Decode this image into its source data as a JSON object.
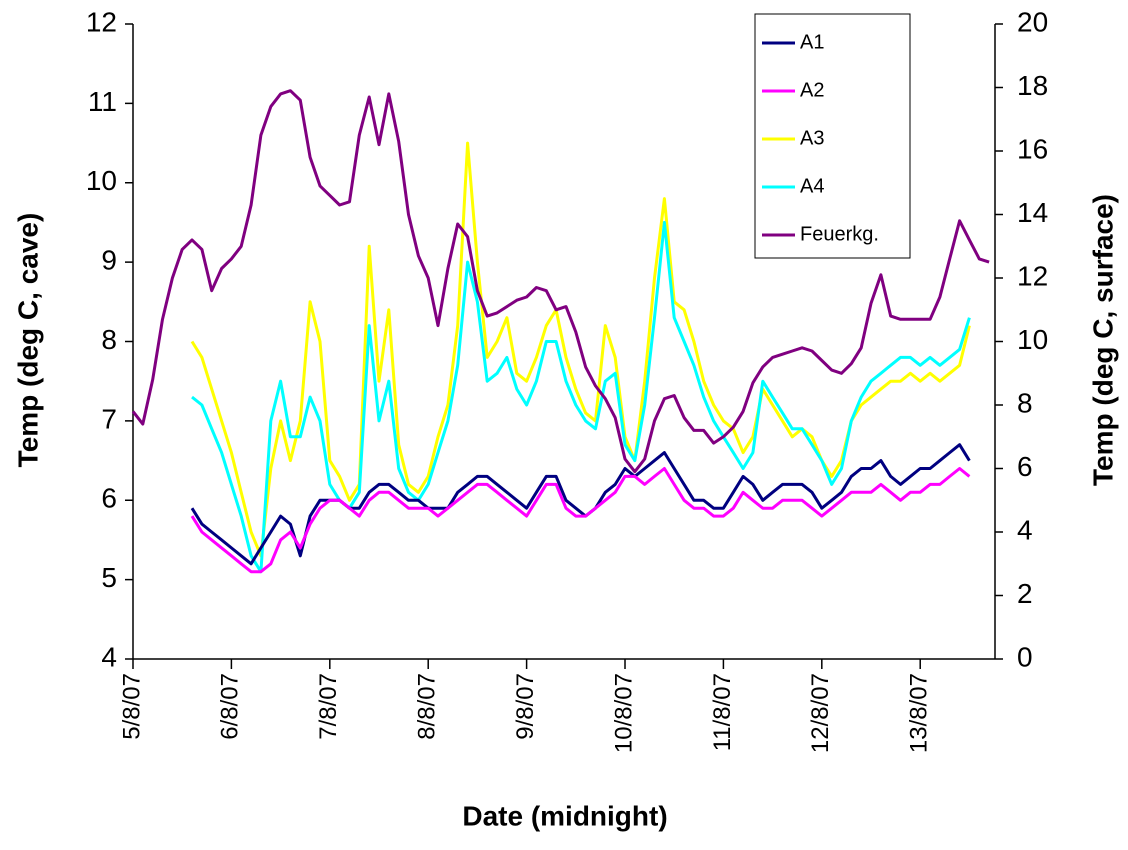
{
  "chart_data": {
    "type": "line",
    "x_label": "Date (midnight)",
    "y_label": "Temp (deg C, cave)",
    "y2_label": "Temp (deg C, surface)",
    "x": [
      0,
      0.1,
      0.2,
      0.3,
      0.4,
      0.5,
      0.6,
      0.7,
      0.8,
      0.9,
      1.0,
      1.1,
      1.2,
      1.3,
      1.4,
      1.5,
      1.6,
      1.7,
      1.8,
      1.9,
      2.0,
      2.1,
      2.2,
      2.3,
      2.4,
      2.5,
      2.6,
      2.7,
      2.8,
      2.9,
      3.0,
      3.1,
      3.2,
      3.3,
      3.4,
      3.5,
      3.6,
      3.7,
      3.8,
      3.9,
      4.0,
      4.1,
      4.2,
      4.3,
      4.4,
      4.5,
      4.6,
      4.7,
      4.8,
      4.9,
      5.0,
      5.1,
      5.2,
      5.3,
      5.4,
      5.5,
      5.6,
      5.7,
      5.8,
      5.9,
      6.0,
      6.1,
      6.2,
      6.3,
      6.4,
      6.5,
      6.6,
      6.7,
      6.8,
      6.9,
      7.0,
      7.1,
      7.2,
      7.3,
      7.4,
      7.5,
      7.6,
      7.7,
      7.8,
      7.9,
      8.0,
      8.1,
      8.2,
      8.3,
      8.4,
      8.5,
      8.6,
      8.7
    ],
    "xlim": [
      0,
      8.76
    ],
    "xticks": [
      {
        "value": 0,
        "label": "5/8/07"
      },
      {
        "value": 1,
        "label": "6/8/07"
      },
      {
        "value": 2,
        "label": "7/8/07"
      },
      {
        "value": 3,
        "label": "8/8/07"
      },
      {
        "value": 4,
        "label": "9/8/07"
      },
      {
        "value": 5,
        "label": "10/8/07"
      },
      {
        "value": 6,
        "label": "11/8/07"
      },
      {
        "value": 7,
        "label": "12/8/07"
      },
      {
        "value": 8,
        "label": "13/8/07"
      }
    ],
    "ylim": [
      4,
      12
    ],
    "yticks": [
      4,
      5,
      6,
      7,
      8,
      9,
      10,
      11,
      12
    ],
    "y2lim": [
      0,
      20
    ],
    "y2ticks": [
      0,
      2,
      4,
      6,
      8,
      10,
      12,
      14,
      16,
      18,
      20
    ],
    "legend": "top-right",
    "series": [
      {
        "name": "A1",
        "color": "#000080",
        "values": [
          null,
          null,
          null,
          null,
          null,
          null,
          5.9,
          5.7,
          5.6,
          5.5,
          5.4,
          5.3,
          5.2,
          5.4,
          5.6,
          5.8,
          5.7,
          5.3,
          5.8,
          6.0,
          6.0,
          6.0,
          5.9,
          5.9,
          6.1,
          6.2,
          6.2,
          6.1,
          6.0,
          6.0,
          5.9,
          5.9,
          5.9,
          6.1,
          6.2,
          6.3,
          6.3,
          6.2,
          6.1,
          6.0,
          5.9,
          6.1,
          6.3,
          6.3,
          6.0,
          5.9,
          5.8,
          5.9,
          6.1,
          6.2,
          6.4,
          6.3,
          6.4,
          6.5,
          6.6,
          6.4,
          6.2,
          6.0,
          6.0,
          5.9,
          5.9,
          6.1,
          6.3,
          6.2,
          6.0,
          6.1,
          6.2,
          6.2,
          6.2,
          6.1,
          5.9,
          6.0,
          6.1,
          6.3,
          6.4,
          6.4,
          6.5,
          6.3,
          6.2,
          6.3,
          6.4,
          6.4,
          6.5,
          6.6,
          6.7,
          6.5,
          null,
          null
        ]
      },
      {
        "name": "A2",
        "color": "#ff00ff",
        "values": [
          null,
          null,
          null,
          null,
          null,
          null,
          5.8,
          5.6,
          5.5,
          5.4,
          5.3,
          5.2,
          5.1,
          5.1,
          5.2,
          5.5,
          5.6,
          5.4,
          5.7,
          5.9,
          6.0,
          6.0,
          5.9,
          5.8,
          6.0,
          6.1,
          6.1,
          6.0,
          5.9,
          5.9,
          5.9,
          5.8,
          5.9,
          6.0,
          6.1,
          6.2,
          6.2,
          6.1,
          6.0,
          5.9,
          5.8,
          6.0,
          6.2,
          6.2,
          5.9,
          5.8,
          5.8,
          5.9,
          6.0,
          6.1,
          6.3,
          6.3,
          6.2,
          6.3,
          6.4,
          6.2,
          6.0,
          5.9,
          5.9,
          5.8,
          5.8,
          5.9,
          6.1,
          6.0,
          5.9,
          5.9,
          6.0,
          6.0,
          6.0,
          5.9,
          5.8,
          5.9,
          6.0,
          6.1,
          6.1,
          6.1,
          6.2,
          6.1,
          6.0,
          6.1,
          6.1,
          6.2,
          6.2,
          6.3,
          6.4,
          6.3,
          null,
          null
        ]
      },
      {
        "name": "A3",
        "color": "#ffff00",
        "values": [
          null,
          null,
          null,
          null,
          null,
          null,
          8.0,
          7.8,
          7.4,
          7.0,
          6.6,
          6.1,
          5.6,
          5.3,
          6.4,
          7.0,
          6.5,
          7.0,
          8.5,
          8.0,
          6.5,
          6.3,
          6.0,
          6.2,
          9.2,
          7.5,
          8.4,
          6.7,
          6.2,
          6.1,
          6.3,
          6.8,
          7.2,
          8.2,
          10.5,
          9.0,
          7.8,
          8.0,
          8.3,
          7.6,
          7.5,
          7.8,
          8.2,
          8.4,
          7.8,
          7.4,
          7.1,
          7.0,
          8.2,
          7.8,
          6.8,
          6.5,
          7.5,
          8.8,
          9.8,
          8.5,
          8.4,
          8.0,
          7.5,
          7.2,
          7.0,
          6.9,
          6.6,
          6.8,
          7.4,
          7.2,
          7.0,
          6.8,
          6.9,
          6.8,
          6.5,
          6.3,
          6.5,
          7.0,
          7.2,
          7.3,
          7.4,
          7.5,
          7.5,
          7.6,
          7.5,
          7.6,
          7.5,
          7.6,
          7.7,
          8.2,
          null,
          null
        ]
      },
      {
        "name": "A4",
        "color": "#00ffff",
        "values": [
          null,
          null,
          null,
          null,
          null,
          null,
          7.3,
          7.2,
          6.9,
          6.6,
          6.2,
          5.8,
          5.3,
          5.1,
          7.0,
          7.5,
          6.8,
          6.8,
          7.3,
          7.0,
          6.2,
          6.0,
          5.9,
          6.1,
          8.2,
          7.0,
          7.5,
          6.4,
          6.1,
          6.0,
          6.2,
          6.6,
          7.0,
          7.7,
          9.0,
          8.5,
          7.5,
          7.6,
          7.8,
          7.4,
          7.2,
          7.5,
          8.0,
          8.0,
          7.5,
          7.2,
          7.0,
          6.9,
          7.5,
          7.6,
          6.7,
          6.5,
          7.2,
          8.3,
          9.5,
          8.3,
          8.0,
          7.7,
          7.3,
          7.0,
          6.8,
          6.6,
          6.4,
          6.6,
          7.5,
          7.3,
          7.1,
          6.9,
          6.9,
          6.7,
          6.5,
          6.2,
          6.4,
          7.0,
          7.3,
          7.5,
          7.6,
          7.7,
          7.8,
          7.8,
          7.7,
          7.8,
          7.7,
          7.8,
          7.9,
          8.3,
          null,
          null
        ]
      },
      {
        "name": "Feuerkg.",
        "color": "#800080",
        "axis": "y2",
        "values": [
          7.8,
          7.4,
          8.8,
          10.7,
          12.0,
          12.9,
          13.2,
          12.9,
          11.6,
          12.3,
          12.6,
          13.0,
          14.3,
          16.5,
          17.4,
          17.8,
          17.9,
          17.6,
          15.8,
          14.9,
          14.6,
          14.3,
          14.4,
          16.5,
          17.7,
          16.2,
          17.8,
          16.3,
          14.0,
          12.7,
          12.0,
          10.5,
          12.3,
          13.7,
          13.3,
          11.6,
          10.8,
          10.9,
          11.1,
          11.3,
          11.4,
          11.7,
          11.6,
          11.0,
          11.1,
          10.3,
          9.2,
          8.6,
          8.2,
          7.6,
          6.3,
          5.9,
          6.3,
          7.5,
          8.2,
          8.3,
          7.6,
          7.2,
          7.2,
          6.8,
          7.0,
          7.3,
          7.8,
          8.7,
          9.2,
          9.5,
          9.6,
          9.7,
          9.8,
          9.7,
          9.4,
          9.1,
          9.0,
          9.3,
          9.8,
          11.2,
          12.1,
          10.8,
          10.7,
          10.7,
          10.7,
          10.7,
          11.4,
          12.6,
          13.8,
          13.2,
          12.6,
          12.5
        ]
      }
    ]
  }
}
